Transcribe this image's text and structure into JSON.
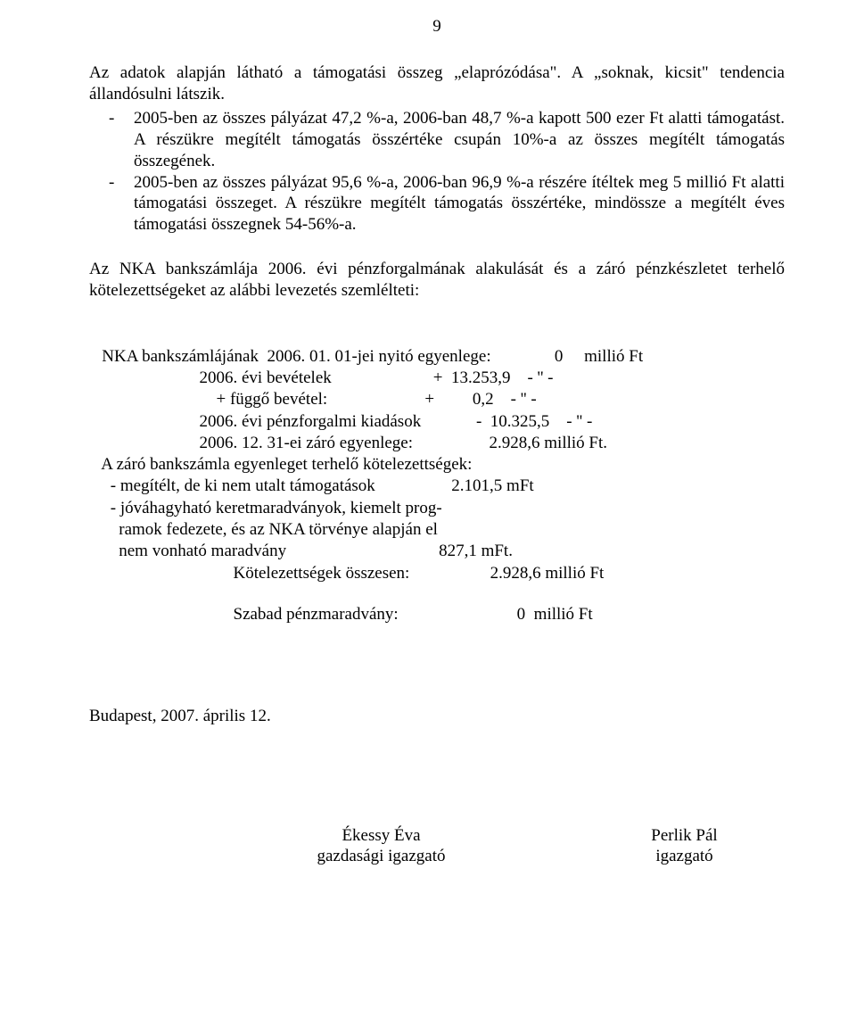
{
  "page_number": "9",
  "intro": "Az adatok alapján látható a támogatási összeg „elaprózódása\". A „soknak, kicsit\" tendencia állandósulni látszik.",
  "bullets": [
    "2005-ben az összes pályázat 47,2 %-a, 2006-ban 48,7 %-a kapott 500 ezer Ft alatti támogatást. A részükre megítélt támogatás összértéke csupán 10%-a az összes megítélt támogatás összegének.",
    "2005-ben az összes pályázat 95,6 %-a, 2006-ban 96,9 %-a részére ítéltek meg 5 millió Ft alatti támogatási összeget. A részükre megítélt támogatás összértéke, mindössze a megítélt éves támogatási összegnek 54-56%-a."
  ],
  "section": "Az NKA bankszámlája 2006. évi pénzforgalmának alakulását és a záró pénzkészletet terhelő kötelezettségeket az alábbi levezetés szemlélteti:",
  "fin": {
    "l1": "   NKA bankszámlájának  2006. 01. 01-jei nyitó egyenlege:               0     millió Ft",
    "l2": "                          2006. évi bevételek                        +  13.253,9    - '' -",
    "l3": "                              + függő bevétel:                       +         0,2    - '' -",
    "l4": "                          2006. évi pénzforgalmi kiadások             -  10.325,5    - '' -",
    "l5": "                          2006. 12. 31-ei záró egyenlege:                  2.928,6 millió Ft.",
    "l6": "   A záró bankszámla egyenleget terhelő kötelezettségek:",
    "l7": "     - megítélt, de ki nem utalt támogatások                  2.101,5 mFt",
    "l8": "     - jóváhagyható keretmaradványok, kiemelt prog-",
    "l9": "       ramok fedezete, és az NKA törvénye alapján el",
    "l10": "       nem vonható maradvány                                    827,1 mFt.",
    "l11": "                                  Kötelezettségek összesen:                   2.928,6 millió Ft",
    "sz": "                                  Szabad pénzmaradvány:                            0  millió Ft"
  },
  "date": "Budapest, 2007. április 12.",
  "sign": {
    "left_name": "Ékessy Éva",
    "left_title": "gazdasági igazgató",
    "right_name": "Perlik Pál",
    "right_title": "igazgató"
  }
}
